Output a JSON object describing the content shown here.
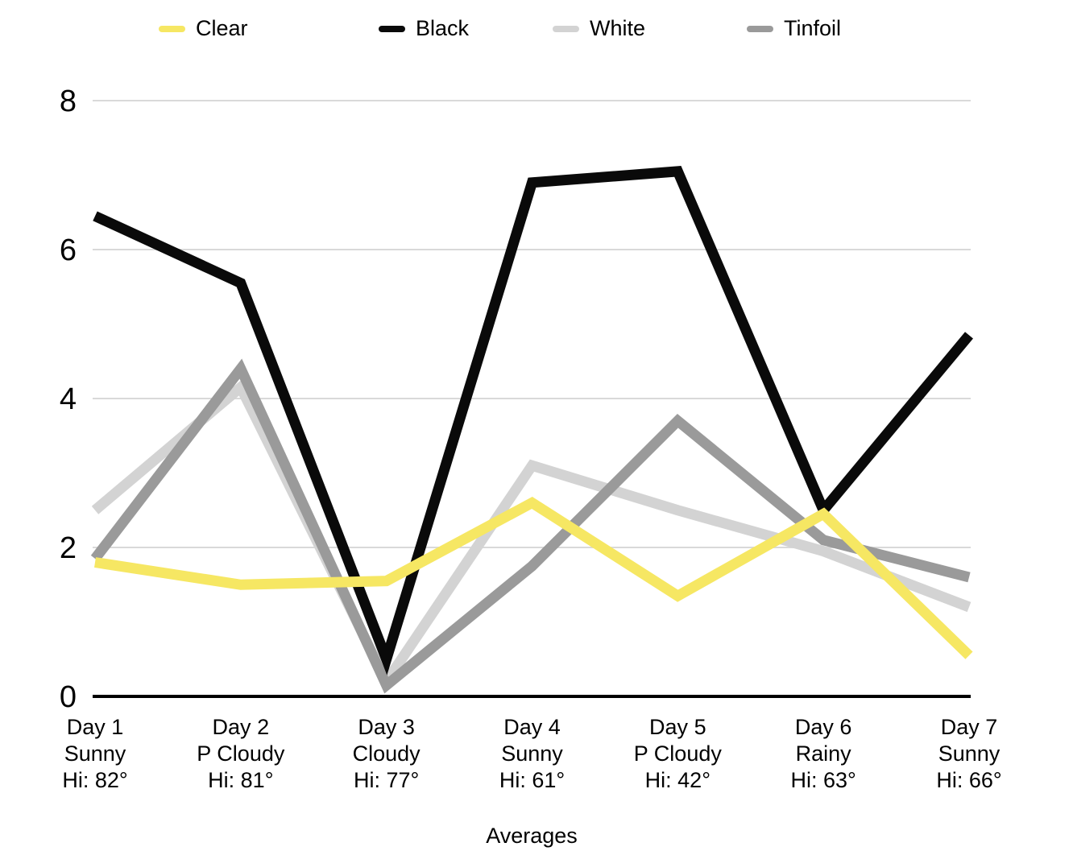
{
  "chart_data": {
    "type": "line",
    "title": "",
    "xlabel": "Averages",
    "ylabel": "",
    "ylim": [
      0,
      8
    ],
    "yticks": [
      0,
      2,
      4,
      6,
      8
    ],
    "grid": true,
    "legend_position": "top",
    "axis_color": "#000000",
    "gridline_color": "#D9D9D9",
    "categories": [
      {
        "day": "Day 1",
        "weather": "Sunny",
        "hi": "Hi: 82°"
      },
      {
        "day": "Day 2",
        "weather": "P Cloudy",
        "hi": "Hi: 81°"
      },
      {
        "day": "Day 3",
        "weather": "Cloudy",
        "hi": "Hi: 77°"
      },
      {
        "day": "Day 4",
        "weather": "Sunny",
        "hi": "Hi: 61°"
      },
      {
        "day": "Day 5",
        "weather": "P Cloudy",
        "hi": "Hi: 42°"
      },
      {
        "day": "Day 6",
        "weather": "Rainy",
        "hi": "Hi: 63°"
      },
      {
        "day": "Day 7",
        "weather": "Sunny",
        "hi": "Hi: 66°"
      }
    ],
    "series": [
      {
        "name": "Clear",
        "color": "#F6E763",
        "values": [
          1.8,
          1.5,
          1.55,
          2.6,
          1.35,
          2.45,
          0.55
        ]
      },
      {
        "name": "Black",
        "color": "#0A0A0A",
        "values": [
          6.45,
          5.55,
          0.5,
          6.9,
          7.05,
          2.5,
          4.85
        ]
      },
      {
        "name": "White",
        "color": "#D3D3D3",
        "values": [
          2.5,
          4.15,
          0.2,
          3.1,
          2.5,
          1.95,
          1.2
        ]
      },
      {
        "name": "Tinfoil",
        "color": "#9A9A9A",
        "values": [
          1.85,
          4.4,
          0.15,
          1.75,
          3.7,
          2.1,
          1.6
        ]
      }
    ],
    "draw_order": [
      "White",
      "Tinfoil",
      "Black",
      "Clear"
    ]
  }
}
